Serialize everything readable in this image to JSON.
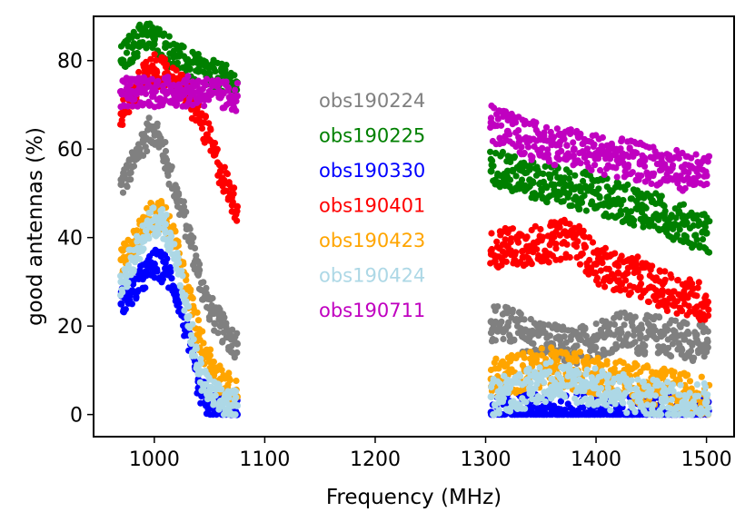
{
  "chart_data": {
    "type": "scatter",
    "title": "",
    "xlabel": "Frequency (MHz)",
    "ylabel": "good antennas (%)",
    "xlim": [
      945,
      1525
    ],
    "ylim": [
      -5,
      90
    ],
    "xticks": [
      1000,
      1100,
      1200,
      1300,
      1400,
      1500
    ],
    "xtick_labels": [
      "1000",
      "1100",
      "1200",
      "1300",
      "1400",
      "1500"
    ],
    "yticks": [
      0,
      20,
      40,
      60,
      80
    ],
    "ytick_labels": [
      "0",
      "20",
      "40",
      "60",
      "80"
    ],
    "legend_position": "center",
    "series": [
      {
        "name": "obs190224",
        "color": "#808080",
        "x": [
          970,
          980,
          990,
          1000,
          1010,
          1020,
          1030,
          1040,
          1050,
          1060,
          1070,
          1075,
          1305,
          1320,
          1340,
          1360,
          1380,
          1400,
          1420,
          1440,
          1460,
          1480,
          1500
        ],
        "y": [
          52,
          56,
          62,
          65,
          58,
          50,
          42,
          32,
          24,
          20,
          17,
          16,
          21,
          20,
          18,
          16,
          15,
          17,
          19,
          18,
          18,
          17,
          16
        ]
      },
      {
        "name": "obs190225",
        "color": "#008000",
        "x": [
          970,
          980,
          990,
          1000,
          1010,
          1020,
          1030,
          1040,
          1050,
          1060,
          1070,
          1075,
          1305,
          1320,
          1340,
          1360,
          1380,
          1400,
          1420,
          1440,
          1460,
          1480,
          1500
        ],
        "y": [
          80,
          83,
          86,
          85,
          83,
          81,
          79,
          78,
          77,
          76,
          75,
          75,
          55,
          55,
          53,
          52,
          51,
          50,
          48,
          47,
          45,
          43,
          41
        ]
      },
      {
        "name": "obs190330",
        "color": "#0000ff",
        "x": [
          970,
          980,
          990,
          1000,
          1010,
          1020,
          1030,
          1040,
          1050,
          1060,
          1070,
          1075,
          1305,
          1320,
          1340,
          1360,
          1380,
          1400,
          1420,
          1440,
          1460,
          1480,
          1500
        ],
        "y": [
          25,
          28,
          31,
          34,
          33,
          28,
          18,
          6,
          2,
          1,
          0,
          0,
          0.5,
          0.5,
          0.3,
          0.3,
          0.3,
          0.3,
          0.3,
          0.3,
          0.3,
          0.3,
          0.3
        ]
      },
      {
        "name": "obs190401",
        "color": "#ff0000",
        "x": [
          970,
          980,
          990,
          1000,
          1010,
          1020,
          1030,
          1040,
          1050,
          1060,
          1070,
          1075,
          1305,
          1320,
          1340,
          1360,
          1380,
          1400,
          1420,
          1440,
          1460,
          1480,
          1500
        ],
        "y": [
          68,
          72,
          76,
          78,
          77,
          75,
          72,
          68,
          62,
          55,
          49,
          47,
          37,
          38,
          38,
          39,
          40,
          34,
          32,
          31,
          28,
          27,
          25
        ]
      },
      {
        "name": "obs190423",
        "color": "#ffa500",
        "x": [
          970,
          980,
          990,
          1000,
          1010,
          1020,
          1030,
          1040,
          1050,
          1060,
          1070,
          1075,
          1305,
          1320,
          1340,
          1360,
          1380,
          1400,
          1420,
          1440,
          1460,
          1480,
          1500
        ],
        "y": [
          35,
          38,
          42,
          46,
          44,
          38,
          28,
          18,
          12,
          8,
          5,
          4,
          8,
          9,
          10,
          11,
          10,
          9,
          8,
          7,
          6,
          5,
          4
        ]
      },
      {
        "name": "obs190424",
        "color": "#add8e6",
        "x": [
          970,
          980,
          990,
          1000,
          1010,
          1020,
          1030,
          1040,
          1050,
          1060,
          1070,
          1075,
          1305,
          1320,
          1340,
          1360,
          1380,
          1400,
          1420,
          1440,
          1460,
          1480,
          1500
        ],
        "y": [
          30,
          35,
          40,
          44,
          43,
          35,
          22,
          10,
          5,
          3,
          2,
          2,
          4,
          5,
          6,
          8,
          7,
          6,
          5,
          4,
          3,
          3,
          3
        ]
      },
      {
        "name": "obs190711",
        "color": "#c000c0",
        "x": [
          970,
          980,
          990,
          1000,
          1010,
          1020,
          1030,
          1040,
          1050,
          1060,
          1070,
          1075,
          1305,
          1320,
          1340,
          1360,
          1380,
          1400,
          1420,
          1440,
          1460,
          1480,
          1500
        ],
        "y": [
          73,
          73,
          73,
          73,
          73,
          73,
          73,
          73,
          73,
          72,
          72,
          72,
          66,
          64,
          62,
          61,
          60,
          59,
          58,
          57,
          56,
          55,
          54
        ]
      }
    ]
  }
}
